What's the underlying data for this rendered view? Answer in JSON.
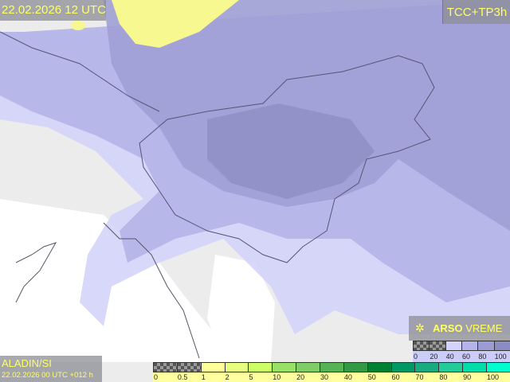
{
  "header": {
    "valid_time": "22.02.2026 12 UTC",
    "product": "TCC+TP3h"
  },
  "footer": {
    "model": "ALADIN/SI",
    "run": "22.02.2026 00 UTC +012 h"
  },
  "branding": {
    "icon": "satellite-icon",
    "text_bold": "ARSO",
    "text_regular": "VREME"
  },
  "precip_legend": {
    "labels": [
      "0",
      "0.5",
      "1",
      "2",
      "5",
      "10",
      "20",
      "30",
      "40",
      "50",
      "60",
      "70",
      "80",
      "90",
      "100"
    ],
    "colors": [
      "checker",
      "checker",
      "#ffff99",
      "#e6ff80",
      "#ccff66",
      "#99e066",
      "#80cc66",
      "#55b355",
      "#339944",
      "#008033",
      "#009966",
      "#1aaa80",
      "#22cc99",
      "#00ddaa",
      "#00ffcc"
    ]
  },
  "cloud_legend": {
    "labels": [
      "0",
      "20",
      "40",
      "60",
      "80",
      "100"
    ],
    "colors": [
      "checker",
      "checker",
      "#d4d4fa",
      "#b4b4e8",
      "#9c9cd4",
      "#8c8cc4"
    ]
  }
}
